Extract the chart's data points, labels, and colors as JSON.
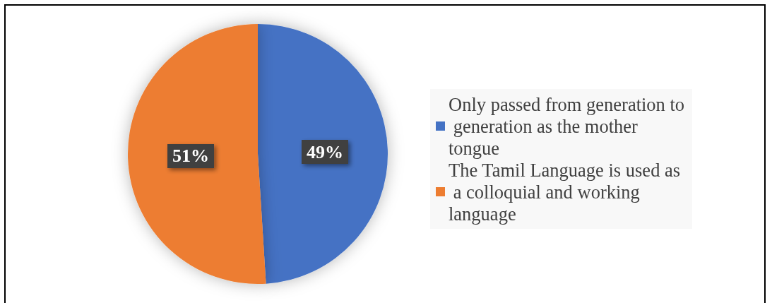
{
  "chart_data": {
    "type": "pie",
    "categories": [
      "Only passed from generation to generation as the mother tongue",
      "The Tamil Language is used as a colloquial and working language"
    ],
    "values": [
      49,
      51
    ],
    "colors": [
      "#4472c4",
      "#ed7d31"
    ],
    "value_labels": [
      "49%",
      "51%"
    ],
    "legend": "right"
  }
}
